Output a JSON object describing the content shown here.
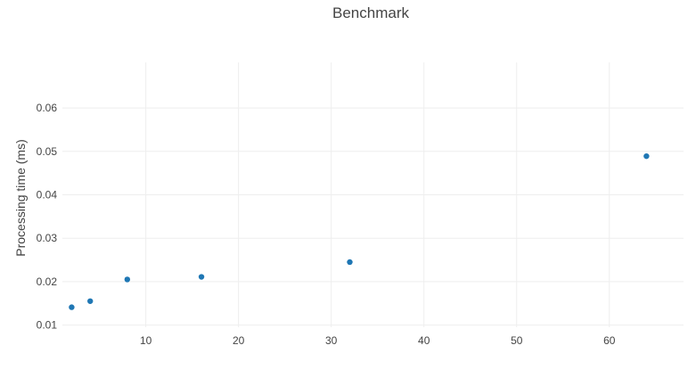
{
  "chart_data": {
    "type": "scatter",
    "title": "Benchmark",
    "xlabel": "",
    "ylabel": "Processing time (ms)",
    "xlim": [
      1,
      68
    ],
    "ylim": [
      0.0095,
      0.0705
    ],
    "x_ticks": [
      10,
      20,
      30,
      40,
      50,
      60
    ],
    "y_ticks": [
      0.01,
      0.02,
      0.03,
      0.04,
      0.05,
      0.06
    ],
    "x_tick_labels": [
      "10",
      "20",
      "30",
      "40",
      "50",
      "60"
    ],
    "y_tick_labels": [
      "0.01",
      "0.02",
      "0.03",
      "0.04",
      "0.05",
      "0.06"
    ],
    "grid": true,
    "legend": "none",
    "marker_color": "#1f77b4",
    "series": [
      {
        "x": [
          2,
          4,
          8,
          16,
          32,
          64
        ],
        "y": [
          0.0141,
          0.0155,
          0.0205,
          0.0211,
          0.0245,
          0.0489
        ]
      }
    ]
  }
}
